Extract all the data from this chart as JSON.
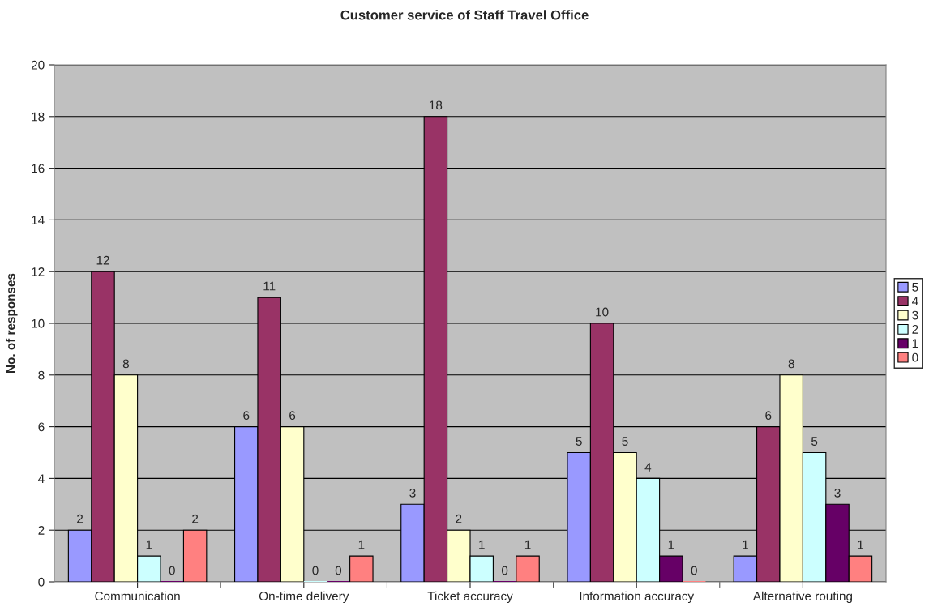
{
  "chart_data": {
    "type": "bar",
    "title": "Customer service of Staff Travel Office",
    "ylabel": "No. of responses",
    "categories": [
      "Communication",
      "On-time delivery",
      "Ticket accuracy",
      "Information accuracy",
      "Alternative routing"
    ],
    "series": [
      {
        "name": "5",
        "color": "#9999ff",
        "values": [
          2,
          6,
          3,
          5,
          1
        ]
      },
      {
        "name": "4",
        "color": "#993366",
        "values": [
          12,
          11,
          18,
          10,
          6
        ]
      },
      {
        "name": "3",
        "color": "#ffffcc",
        "values": [
          8,
          6,
          2,
          5,
          8
        ]
      },
      {
        "name": "2",
        "color": "#ccffff",
        "values": [
          1,
          0,
          1,
          4,
          5
        ]
      },
      {
        "name": "1",
        "color": "#660066",
        "values": [
          0,
          0,
          0,
          1,
          3
        ]
      },
      {
        "name": "0",
        "color": "#ff8080",
        "values": [
          2,
          1,
          1,
          0,
          1
        ]
      }
    ],
    "ylim": [
      0,
      20
    ],
    "yticks": [
      0,
      2,
      4,
      6,
      8,
      10,
      12,
      14,
      16,
      18,
      20
    ],
    "grid": "y",
    "legend": "right",
    "data_labels": true
  }
}
